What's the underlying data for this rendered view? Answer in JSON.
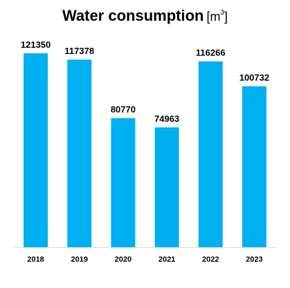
{
  "chart_data": {
    "type": "bar",
    "title": "Water consumption",
    "unit": {
      "base": "[m",
      "superscript": "3",
      "close": "]"
    },
    "categories": [
      "2018",
      "2019",
      "2020",
      "2021",
      "2022",
      "2023"
    ],
    "values": [
      121350,
      117378,
      80770,
      74963,
      116266,
      100732
    ],
    "data_labels": [
      "121350",
      "117378",
      "80770",
      "74963",
      "116266",
      "100732"
    ],
    "xlabel": "",
    "ylabel": "",
    "ylim": [
      0,
      130000
    ],
    "grid": false,
    "legend": "none"
  },
  "colors": {
    "bar": "#00b0f0",
    "axis": "#d9d9d9",
    "text": "#000000"
  }
}
